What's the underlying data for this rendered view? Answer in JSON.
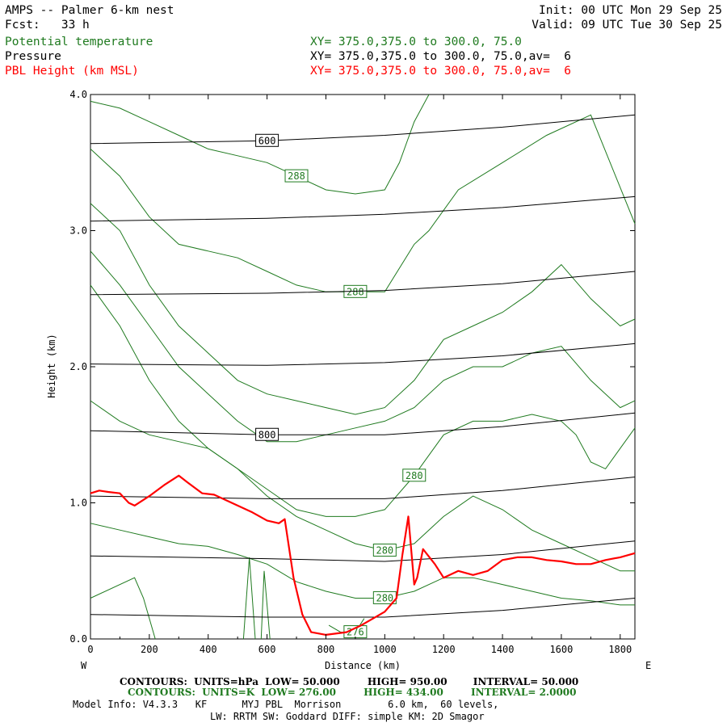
{
  "header": {
    "title": "AMPS -- Palmer 6-km nest",
    "fcst": "Fcst:   33 h",
    "init": "Init: 00 UTC Mon 29 Sep 25",
    "valid": "Valid: 09 UTC Tue 30 Sep 25",
    "legend": [
      {
        "name": "Potential temperature",
        "xy": "XY= 375.0,375.0 to 300.0, 75.0",
        "color": "#1f7a1f"
      },
      {
        "name": "Pressure",
        "xy": "XY= 375.0,375.0 to 300.0, 75.0,av=  6",
        "color": "#000000"
      },
      {
        "name": "PBL Height (km MSL)",
        "xy": "XY= 375.0,375.0 to 300.0, 75.0,av=  6",
        "color": "#ff0000"
      }
    ]
  },
  "footer": {
    "pressure_contours": {
      "label": "CONTOURS:",
      "units": "UNITS=hPa",
      "low": "LOW=  50.000",
      "high": "HIGH=  950.00",
      "interval": "INTERVAL=  50.000"
    },
    "theta_contours": {
      "label": "CONTOURS:",
      "units": "UNITS=K",
      "low": "LOW=  276.00",
      "high": "HIGH=  434.00",
      "interval": "INTERVAL=  2.0000"
    },
    "model_info": "Model Info: V4.3.3   KF      MYJ PBL  Morrison        6.0 km,  60 levels,",
    "model_info2": "LW: RRTM SW: Goddard DIFF: simple KM: 2D Smagor"
  },
  "chart_data": {
    "type": "line",
    "xlabel": "Distance (km)",
    "ylabel": "Height (km)",
    "xlim": [
      0,
      1850
    ],
    "ylim": [
      0,
      4.0
    ],
    "x_ticks": [
      "0",
      "200",
      "400",
      "600",
      "800",
      "1000",
      "1200",
      "1400",
      "1600",
      "1800"
    ],
    "y_ticks": [
      "0.0",
      "1.0",
      "2.0",
      "3.0",
      "4.0"
    ],
    "left_end_label": "W",
    "right_end_label": "E",
    "pbl_height": {
      "name": "PBL Height (km MSL)",
      "color": "#ff0000",
      "x": [
        0,
        30,
        60,
        100,
        130,
        150,
        200,
        250,
        300,
        330,
        380,
        420,
        480,
        550,
        600,
        640,
        660,
        690,
        720,
        750,
        800,
        870,
        920,
        960,
        1000,
        1040,
        1060,
        1080,
        1100,
        1110,
        1130,
        1170,
        1200,
        1250,
        1300,
        1350,
        1400,
        1450,
        1500,
        1550,
        1600,
        1650,
        1700,
        1750,
        1800,
        1850
      ],
      "y": [
        1.07,
        1.09,
        1.08,
        1.07,
        1.0,
        0.98,
        1.05,
        1.13,
        1.2,
        1.15,
        1.07,
        1.06,
        1.0,
        0.93,
        0.87,
        0.85,
        0.88,
        0.45,
        0.18,
        0.05,
        0.03,
        0.05,
        0.1,
        0.15,
        0.2,
        0.3,
        0.62,
        0.9,
        0.4,
        0.45,
        0.66,
        0.55,
        0.45,
        0.5,
        0.47,
        0.5,
        0.58,
        0.6,
        0.6,
        0.58,
        0.57,
        0.55,
        0.55,
        0.58,
        0.6,
        0.63
      ]
    },
    "pressure_contours": [
      {
        "label": "600",
        "x": [
          0,
          600,
          1000,
          1400,
          1850
        ],
        "y": [
          3.64,
          3.66,
          3.7,
          3.76,
          3.85
        ]
      },
      {
        "label": "",
        "x": [
          0,
          600,
          1000,
          1400,
          1850
        ],
        "y": [
          3.07,
          3.09,
          3.12,
          3.17,
          3.25
        ]
      },
      {
        "label": "",
        "x": [
          0,
          600,
          1000,
          1400,
          1850
        ],
        "y": [
          2.53,
          2.54,
          2.56,
          2.61,
          2.7
        ]
      },
      {
        "label": "",
        "x": [
          0,
          600,
          1000,
          1400,
          1850
        ],
        "y": [
          2.02,
          2.01,
          2.03,
          2.08,
          2.17
        ]
      },
      {
        "label": "800",
        "x": [
          0,
          600,
          1000,
          1400,
          1850
        ],
        "y": [
          1.53,
          1.5,
          1.5,
          1.56,
          1.66
        ]
      },
      {
        "label": "",
        "x": [
          0,
          600,
          1000,
          1400,
          1850
        ],
        "y": [
          1.05,
          1.03,
          1.03,
          1.09,
          1.19
        ]
      },
      {
        "label": "",
        "x": [
          0,
          600,
          1000,
          1400,
          1850
        ],
        "y": [
          0.61,
          0.59,
          0.57,
          0.62,
          0.72
        ]
      },
      {
        "label": "",
        "x": [
          0,
          600,
          1000,
          1400,
          1850
        ],
        "y": [
          0.18,
          0.16,
          0.16,
          0.21,
          0.3
        ]
      }
    ],
    "theta_contours": [
      {
        "label": "288",
        "x": [
          0,
          100,
          200,
          300,
          400,
          500,
          600,
          700,
          800,
          900,
          1000,
          1050,
          1100,
          1150
        ],
        "y": [
          3.95,
          3.9,
          3.8,
          3.7,
          3.6,
          3.55,
          3.5,
          3.4,
          3.3,
          3.27,
          3.3,
          3.5,
          3.8,
          4.0
        ]
      },
      {
        "label": "288",
        "x": [
          0,
          100,
          200,
          300,
          400,
          500,
          600,
          700,
          800,
          900,
          1000,
          1100,
          1150,
          1250,
          1400,
          1550,
          1700,
          1850
        ],
        "y": [
          3.6,
          3.4,
          3.1,
          2.9,
          2.85,
          2.8,
          2.7,
          2.6,
          2.55,
          2.55,
          2.55,
          2.9,
          3.0,
          3.3,
          3.5,
          3.7,
          3.85,
          3.05
        ]
      },
      {
        "label": "",
        "x": [
          0,
          100,
          200,
          300,
          400,
          500,
          600,
          700,
          800,
          900,
          1000,
          1100,
          1200,
          1300,
          1400,
          1500,
          1600,
          1700,
          1800,
          1850
        ],
        "y": [
          3.2,
          3.0,
          2.6,
          2.3,
          2.1,
          1.9,
          1.8,
          1.75,
          1.7,
          1.65,
          1.7,
          1.9,
          2.2,
          2.3,
          2.4,
          2.55,
          2.75,
          2.5,
          2.3,
          2.35
        ]
      },
      {
        "label": "",
        "x": [
          0,
          100,
          200,
          300,
          400,
          500,
          600,
          700,
          800,
          900,
          1000,
          1100,
          1200,
          1300,
          1400,
          1500,
          1600,
          1700,
          1800,
          1850
        ],
        "y": [
          2.85,
          2.6,
          2.3,
          2.0,
          1.8,
          1.6,
          1.45,
          1.45,
          1.5,
          1.55,
          1.6,
          1.7,
          1.9,
          2.0,
          2.0,
          2.1,
          2.15,
          1.9,
          1.7,
          1.75
        ]
      },
      {
        "label": "280",
        "x": [
          0,
          100,
          200,
          300,
          400,
          500,
          600,
          700,
          800,
          900,
          1000,
          1100,
          1200,
          1300,
          1400,
          1500,
          1600,
          1650,
          1700,
          1750,
          1800,
          1850
        ],
        "y": [
          2.6,
          2.3,
          1.9,
          1.6,
          1.4,
          1.25,
          1.1,
          0.95,
          0.9,
          0.9,
          0.95,
          1.2,
          1.5,
          1.6,
          1.6,
          1.65,
          1.6,
          1.5,
          1.3,
          1.25,
          1.4,
          1.55
        ]
      },
      {
        "label": "280",
        "x": [
          0,
          100,
          200,
          300,
          400,
          500,
          600,
          700,
          800,
          900,
          1000,
          1100,
          1200,
          1300,
          1400,
          1500,
          1600,
          1700,
          1800,
          1850
        ],
        "y": [
          1.75,
          1.6,
          1.5,
          1.45,
          1.4,
          1.25,
          1.05,
          0.9,
          0.8,
          0.7,
          0.65,
          0.7,
          0.9,
          1.05,
          0.95,
          0.8,
          0.7,
          0.6,
          0.5,
          0.5
        ]
      },
      {
        "label": "280",
        "x": [
          0,
          100,
          200,
          300,
          400,
          500,
          600,
          700,
          800,
          900,
          1000,
          1100,
          1200,
          1300,
          1400,
          1500,
          1600,
          1700,
          1800,
          1850
        ],
        "y": [
          0.85,
          0.8,
          0.75,
          0.7,
          0.68,
          0.62,
          0.55,
          0.42,
          0.35,
          0.3,
          0.3,
          0.35,
          0.45,
          0.45,
          0.4,
          0.35,
          0.3,
          0.28,
          0.25,
          0.25
        ]
      },
      {
        "label": "",
        "x": [
          0,
          150,
          180,
          220
        ],
        "y": [
          0.3,
          0.45,
          0.3,
          0.0
        ]
      },
      {
        "label": "",
        "x": [
          520,
          540,
          560
        ],
        "y": [
          0.0,
          0.6,
          0.0
        ]
      },
      {
        "label": "",
        "x": [
          580,
          590,
          610
        ],
        "y": [
          0.0,
          0.5,
          0.0
        ]
      },
      {
        "label": "276",
        "x": [
          810,
          850,
          900,
          930
        ],
        "y": [
          0.1,
          0.05,
          0.05,
          0.15
        ]
      }
    ]
  }
}
